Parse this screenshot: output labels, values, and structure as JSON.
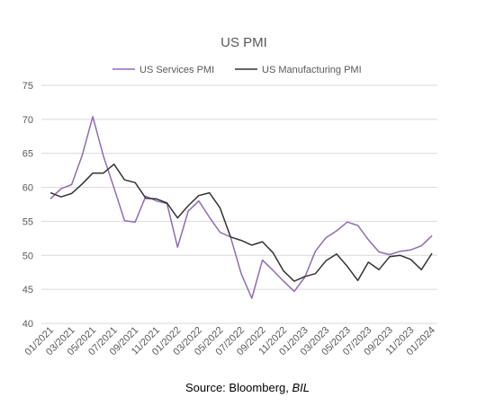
{
  "chart_data": {
    "type": "line",
    "title": "US PMI",
    "xlabel": "",
    "ylabel": "",
    "ylim": [
      40,
      75
    ],
    "yticks": [
      "75",
      "70",
      "65",
      "60",
      "55",
      "50",
      "45",
      "40"
    ],
    "grid": "horizontal",
    "legend_position": "top-center",
    "categories": [
      "01/2021",
      "02/2021",
      "03/2021",
      "04/2021",
      "05/2021",
      "06/2021",
      "07/2021",
      "08/2021",
      "09/2021",
      "10/2021",
      "11/2021",
      "12/2021",
      "01/2022",
      "02/2022",
      "03/2022",
      "04/2022",
      "05/2022",
      "06/2022",
      "07/2022",
      "08/2022",
      "09/2022",
      "10/2022",
      "11/2022",
      "12/2022",
      "01/2023",
      "02/2023",
      "03/2023",
      "04/2023",
      "05/2023",
      "06/2023",
      "07/2023",
      "08/2023",
      "09/2023",
      "10/2023",
      "11/2023",
      "12/2023",
      "01/2024"
    ],
    "xtick_labels": [
      "01/2021",
      "03/2021",
      "05/2021",
      "07/2021",
      "09/2021",
      "11/2021",
      "01/2022",
      "03/2022",
      "05/2022",
      "07/2022",
      "09/2022",
      "11/2022",
      "01/2023",
      "03/2023",
      "05/2023",
      "07/2023",
      "09/2023",
      "11/2023",
      "01/2024"
    ],
    "series": [
      {
        "name": "US Services PMI",
        "color": "#8e6bb5",
        "values": [
          58.3,
          59.8,
          60.4,
          64.7,
          70.4,
          64.6,
          59.9,
          55.1,
          54.9,
          58.7,
          58.0,
          57.6,
          51.2,
          56.5,
          58.0,
          55.6,
          53.4,
          52.7,
          47.3,
          43.7,
          49.3,
          47.8,
          46.2,
          44.7,
          46.8,
          50.6,
          52.6,
          53.6,
          54.9,
          54.4,
          52.3,
          50.5,
          50.1,
          50.6,
          50.8,
          51.4,
          52.9
        ]
      },
      {
        "name": "US Manufacturing PMI",
        "color": "#333333",
        "values": [
          59.2,
          58.6,
          59.1,
          60.5,
          62.1,
          62.1,
          63.4,
          61.1,
          60.7,
          58.4,
          58.3,
          57.7,
          55.5,
          57.3,
          58.8,
          59.2,
          57.0,
          52.7,
          52.2,
          51.5,
          52.0,
          50.4,
          47.7,
          46.2,
          46.9,
          47.3,
          49.2,
          50.2,
          48.4,
          46.3,
          49.0,
          47.9,
          49.8,
          50.0,
          49.4,
          47.9,
          50.3
        ]
      }
    ]
  },
  "caption": {
    "prefix": "Source: Bloomberg, ",
    "brand": "BIL"
  }
}
